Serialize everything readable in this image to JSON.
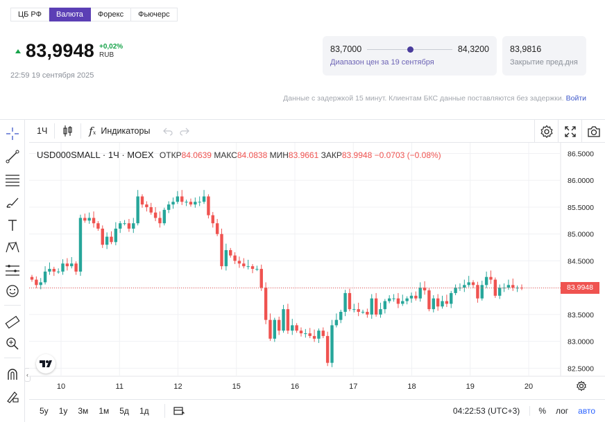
{
  "tabs": [
    {
      "label": "ЦБ РФ",
      "active": false
    },
    {
      "label": "Валюта",
      "active": true
    },
    {
      "label": "Форекс",
      "active": false
    },
    {
      "label": "Фьючерс",
      "active": false
    }
  ],
  "quote": {
    "price": "83,9948",
    "change_pct": "+0,02%",
    "currency": "RUB",
    "timestamp": "22:59 19 сентября 2025"
  },
  "range_card": {
    "low": "83,7000",
    "high": "84,3200",
    "caption": "Диапазон цен за 19 сентября",
    "position": 0.5
  },
  "close_card": {
    "value": "83,9816",
    "caption": "Закрытие пред.дня"
  },
  "delay_notice": {
    "text": "Данные с задержкой 15 минут. Клиентам БКС данные поставляются без задержки.",
    "link": "Войти"
  },
  "toolbar": {
    "interval": "1Ч",
    "indicators": "Индикаторы"
  },
  "legend": {
    "symbol": "USD000SMALL · 1Ч · MOEX",
    "open_label": "ОТКР",
    "open": "84.0639",
    "high_label": "МАКС",
    "high": "84.0838",
    "low_label": "МИН",
    "low": "83.9661",
    "close_label": "ЗАКР",
    "close": "83.9948",
    "change": "−0.0703 (−0.08%)"
  },
  "last_price_tag": "83.9948",
  "bottom_bar": {
    "ranges": [
      "5y",
      "1y",
      "3м",
      "1м",
      "5д",
      "1д"
    ],
    "time": "04:22:53 (UTC+3)",
    "percent": "%",
    "log": "лог",
    "auto": "авто"
  },
  "colors": {
    "accent": "#5b3fb5",
    "up": "#26a69a",
    "down": "#ef5350",
    "positive_text": "#17a34a"
  },
  "icons": [
    "crosshair-icon",
    "trendline-icon",
    "fib-icon",
    "brush-icon",
    "text-icon",
    "pattern-icon",
    "prediction-icon",
    "emoji-icon",
    "ruler-icon",
    "zoom-in-icon",
    "magnet-icon",
    "lock-pencil-icon",
    "bar-style-icon",
    "function-icon",
    "undo-icon",
    "redo-icon",
    "settings-icon",
    "fullscreen-icon",
    "camera-icon",
    "compare-icon",
    "gear-icon",
    "tradingview-logo-icon"
  ],
  "chart_data": {
    "type": "candlestick",
    "y_ticks": [
      "86.5000",
      "86.0000",
      "85.5000",
      "85.0000",
      "84.5000",
      "84.0000",
      "83.5000",
      "83.0000",
      "82.5000"
    ],
    "x_ticks": [
      "10",
      "11",
      "12",
      "15",
      "16",
      "17",
      "18",
      "19",
      "20"
    ],
    "ylim": [
      82.35,
      86.7
    ],
    "last_price": 83.9948,
    "candles_close": [
      84.15,
      84.05,
      84.1,
      84.3,
      84.35,
      84.3,
      84.3,
      84.45,
      84.4,
      84.45,
      84.3,
      85.3,
      85.25,
      85.3,
      85.2,
      85.1,
      84.8,
      84.95,
      84.85,
      85.1,
      85.2,
      85.2,
      85.1,
      85.2,
      85.7,
      85.55,
      85.5,
      85.4,
      85.3,
      85.2,
      85.45,
      85.55,
      85.6,
      85.7,
      85.6,
      85.6,
      85.55,
      85.6,
      85.6,
      85.7,
      85.35,
      85.2,
      85.0,
      84.4,
      84.7,
      84.6,
      84.5,
      84.45,
      84.4,
      84.4,
      84.35,
      84.35,
      84.0,
      83.4,
      83.05,
      83.4,
      83.2,
      83.6,
      83.2,
      83.3,
      83.2,
      83.15,
      83.15,
      83.1,
      83.05,
      83.2,
      83.1,
      82.6,
      83.3,
      83.4,
      83.55,
      83.9,
      83.6,
      83.6,
      83.55,
      83.55,
      83.5,
      83.8,
      83.5,
      83.6,
      83.75,
      83.8,
      83.8,
      83.7,
      83.75,
      83.8,
      83.85,
      83.8,
      84.0,
      83.95,
      83.6,
      83.8,
      83.65,
      83.75,
      83.7,
      83.9,
      84.0,
      84.0,
      84.05,
      84.1,
      84.05,
      83.8,
      84.05,
      84.2,
      84.15,
      83.85,
      84.0,
      84.0,
      84.05,
      84.0,
      84.0,
      83.9948
    ]
  }
}
